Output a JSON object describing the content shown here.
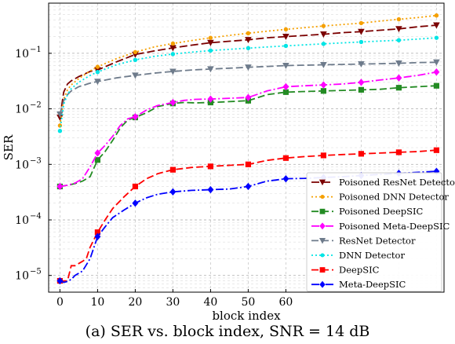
{
  "caption": "(a) SER vs. block index, SNR = 14 dB",
  "chart_data": {
    "type": "line",
    "xlabel": "block index",
    "ylabel": "SER",
    "yscale": "log",
    "xlim": [
      -3,
      102
    ],
    "ylim": [
      5e-06,
      0.8
    ],
    "xticks": [
      0,
      10,
      20,
      30,
      40,
      50,
      60
    ],
    "xtick_labels": [
      "0",
      "10",
      "20",
      "30",
      "40",
      "50",
      "60"
    ],
    "yticks": [
      1e-05,
      0.0001,
      0.001,
      0.01,
      0.1
    ],
    "ytick_labels": [
      "10",
      "10",
      "10",
      "10",
      "10"
    ],
    "ytick_exponents": [
      "−5",
      "−4",
      "−3",
      "−2",
      "−1"
    ],
    "grid": true,
    "legend_position": "lower-right",
    "series": [
      {
        "name": "Poisoned ResNet Detector",
        "color": "#7b0000",
        "dash": "10,4",
        "marker": "tri-down",
        "x": [
          0,
          1,
          2,
          3,
          5,
          8,
          10,
          15,
          20,
          25,
          30,
          35,
          40,
          45,
          50,
          55,
          60,
          65,
          70,
          75,
          80,
          85,
          90,
          95,
          100
        ],
        "y": [
          0.007,
          0.02,
          0.028,
          0.032,
          0.038,
          0.047,
          0.05,
          0.07,
          0.095,
          0.11,
          0.125,
          0.14,
          0.155,
          0.165,
          0.175,
          0.19,
          0.2,
          0.21,
          0.22,
          0.235,
          0.245,
          0.26,
          0.275,
          0.3,
          0.32
        ]
      },
      {
        "name": "Poisoned DNN Detector",
        "color": "#f5a000",
        "dash": "2,3",
        "marker": "dot",
        "x": [
          0,
          1,
          2,
          3,
          5,
          8,
          10,
          15,
          20,
          25,
          30,
          35,
          40,
          45,
          50,
          55,
          60,
          65,
          70,
          75,
          80,
          85,
          90,
          95,
          100
        ],
        "y": [
          0.005,
          0.015,
          0.022,
          0.027,
          0.035,
          0.048,
          0.057,
          0.08,
          0.105,
          0.13,
          0.15,
          0.17,
          0.19,
          0.21,
          0.23,
          0.25,
          0.27,
          0.29,
          0.31,
          0.33,
          0.35,
          0.38,
          0.41,
          0.44,
          0.48
        ]
      },
      {
        "name": "Poisoned DeepSIC",
        "color": "#238b23",
        "dash": "9,4",
        "marker": "square",
        "x": [
          0,
          2,
          4,
          6,
          8,
          10,
          12,
          14,
          16,
          18,
          20,
          23,
          26,
          30,
          33,
          36,
          40,
          45,
          50,
          55,
          60,
          65,
          70,
          75,
          80,
          85,
          90,
          95,
          100
        ],
        "y": [
          0.0004,
          0.00042,
          0.00045,
          0.0005,
          0.0006,
          0.0012,
          0.0017,
          0.0027,
          0.0045,
          0.0063,
          0.007,
          0.0085,
          0.011,
          0.0125,
          0.013,
          0.0128,
          0.013,
          0.0135,
          0.014,
          0.018,
          0.02,
          0.0205,
          0.021,
          0.0215,
          0.022,
          0.0225,
          0.024,
          0.025,
          0.026
        ]
      },
      {
        "name": "Poisoned Meta-DeepSIC",
        "color": "#ff00ff",
        "dash": "10,3,2,3",
        "marker": "diamond",
        "x": [
          0,
          2,
          4,
          6,
          8,
          10,
          12,
          14,
          16,
          18,
          20,
          23,
          26,
          30,
          33,
          36,
          40,
          45,
          50,
          55,
          60,
          65,
          70,
          75,
          80,
          85,
          90,
          95,
          100
        ],
        "y": [
          0.0004,
          0.00042,
          0.00046,
          0.00055,
          0.0009,
          0.0016,
          0.0022,
          0.0032,
          0.005,
          0.0066,
          0.0072,
          0.0095,
          0.0115,
          0.013,
          0.0142,
          0.0148,
          0.015,
          0.0155,
          0.016,
          0.021,
          0.025,
          0.026,
          0.027,
          0.028,
          0.03,
          0.033,
          0.036,
          0.04,
          0.046
        ]
      },
      {
        "name": "ResNet Detector",
        "color": "#6e7b8b",
        "dash": "9,4",
        "marker": "tri-down",
        "x": [
          0,
          1,
          2,
          3,
          5,
          8,
          10,
          15,
          20,
          25,
          30,
          35,
          40,
          45,
          50,
          55,
          60,
          65,
          70,
          75,
          80,
          85,
          90,
          95,
          100
        ],
        "y": [
          0.008,
          0.014,
          0.018,
          0.021,
          0.025,
          0.029,
          0.031,
          0.036,
          0.04,
          0.044,
          0.047,
          0.05,
          0.052,
          0.054,
          0.056,
          0.058,
          0.06,
          0.061,
          0.062,
          0.063,
          0.064,
          0.065,
          0.066,
          0.068,
          0.069
        ]
      },
      {
        "name": "DNN Detector",
        "color": "#00e5e5",
        "dash": "2,3",
        "marker": "dot",
        "x": [
          0,
          1,
          2,
          3,
          5,
          8,
          10,
          15,
          20,
          25,
          30,
          35,
          40,
          45,
          50,
          55,
          60,
          65,
          70,
          75,
          80,
          85,
          90,
          95,
          100
        ],
        "y": [
          0.004,
          0.012,
          0.018,
          0.023,
          0.03,
          0.04,
          0.046,
          0.062,
          0.076,
          0.088,
          0.097,
          0.105,
          0.112,
          0.118,
          0.124,
          0.13,
          0.136,
          0.142,
          0.148,
          0.154,
          0.16,
          0.166,
          0.172,
          0.18,
          0.19
        ]
      },
      {
        "name": "DeepSIC",
        "color": "#ff0000",
        "dash": "9,4",
        "marker": "square",
        "x": [
          0,
          1,
          2,
          3,
          4,
          6,
          7,
          8,
          10,
          12,
          14,
          17,
          20,
          23,
          26,
          30,
          35,
          40,
          45,
          50,
          55,
          60,
          65,
          70,
          75,
          80,
          85,
          90,
          95,
          100
        ],
        "y": [
          8e-06,
          8e-06,
          8e-06,
          1.5e-05,
          1.5e-05,
          1.8e-05,
          2e-05,
          3.2e-05,
          6e-05,
          0.0001,
          0.00016,
          0.00026,
          0.0004,
          0.00055,
          0.00068,
          0.0008,
          0.00088,
          0.00092,
          0.00096,
          0.001,
          0.00118,
          0.0013,
          0.00138,
          0.00145,
          0.0015,
          0.00155,
          0.0016,
          0.00165,
          0.0017,
          0.0018
        ]
      },
      {
        "name": "Meta-DeepSIC",
        "color": "#0000ff",
        "dash": "10,3,2,3",
        "marker": "diamond",
        "x": [
          0,
          1,
          2,
          3,
          4,
          6,
          8,
          10,
          12,
          14,
          17,
          20,
          23,
          26,
          30,
          35,
          40,
          45,
          50,
          55,
          60,
          65,
          70,
          75,
          80,
          85,
          90,
          95,
          100
        ],
        "y": [
          8e-06,
          7.5e-06,
          7.8e-06,
          8.5e-06,
          1e-05,
          1.2e-05,
          2e-05,
          5e-05,
          7.5e-05,
          0.00011,
          0.00015,
          0.0002,
          0.00025,
          0.00029,
          0.00032,
          0.00034,
          0.00035,
          0.00036,
          0.0004,
          0.0005,
          0.00055,
          0.00056,
          0.00058,
          0.0006,
          0.00063,
          0.00066,
          0.00069,
          0.00072,
          0.00075
        ]
      }
    ]
  }
}
